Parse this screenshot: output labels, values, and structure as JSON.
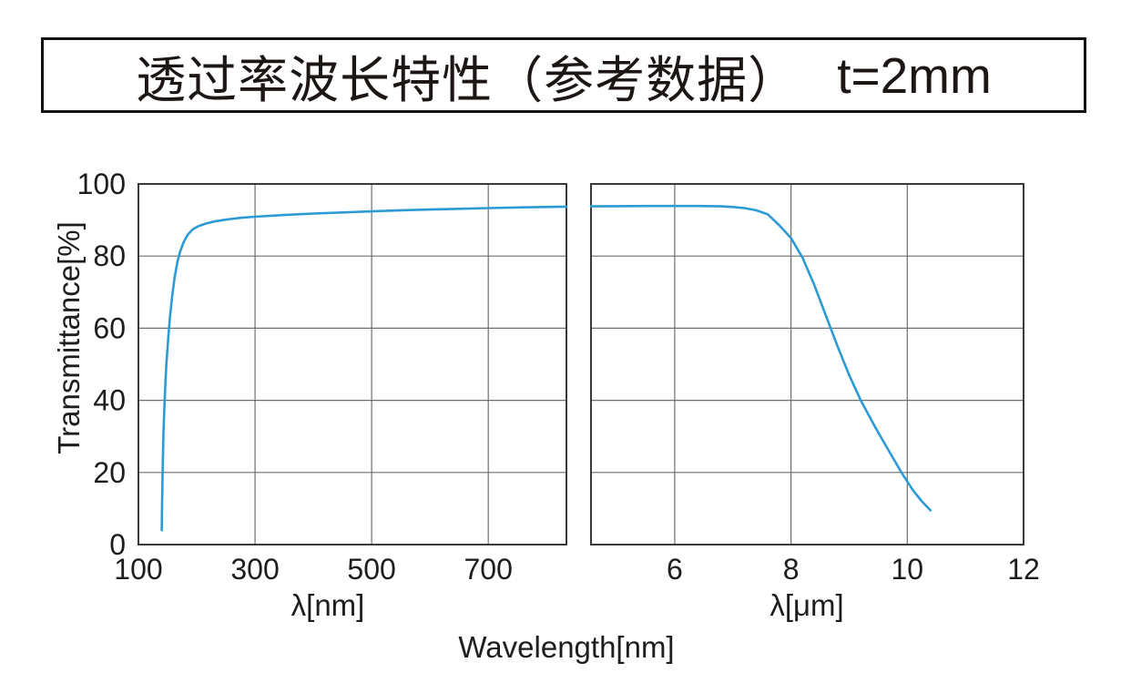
{
  "header": {
    "title": "透过率波长特性（参考数据）",
    "thickness_label": "t=2mm"
  },
  "colors": {
    "curve": "#2C9BD4",
    "axis_border": "#3a3a3a",
    "gridline": "#6e6e6e",
    "tick_text": "#1d1d1d",
    "title_text": "#1c1614",
    "background": "#ffffff"
  },
  "chart_data": {
    "type": "line",
    "title": "透过率波长特性（参考数据） t=2mm",
    "ylabel": "Transmittance[%]",
    "xlabel_bottom": "Wavelength[nm]",
    "ylim": [
      0,
      100
    ],
    "yticks": [
      0,
      20,
      40,
      60,
      80,
      100
    ],
    "grid": true,
    "broken_axis": true,
    "legend": "none",
    "panels": [
      {
        "name": "uv-visible",
        "xlabel": "λ[nm]",
        "unit": "nm",
        "xlim": [
          100,
          834
        ],
        "xticks": [
          100,
          300,
          500,
          700
        ],
        "series": [
          {
            "name": "transmittance",
            "points": [
              [
                140,
                4
              ],
              [
                140.5,
                10
              ],
              [
                141,
                16
              ],
              [
                142,
                24
              ],
              [
                143,
                31
              ],
              [
                144.5,
                38
              ],
              [
                146,
                44
              ],
              [
                148,
                50
              ],
              [
                151,
                57
              ],
              [
                154,
                63
              ],
              [
                158,
                69
              ],
              [
                162,
                74
              ],
              [
                167,
                78.5
              ],
              [
                172,
                81.5
              ],
              [
                178,
                84
              ],
              [
                185,
                86
              ],
              [
                193,
                87.4
              ],
              [
                203,
                88.3
              ],
              [
                215,
                89
              ],
              [
                230,
                89.6
              ],
              [
                250,
                90.1
              ],
              [
                275,
                90.6
              ],
              [
                300,
                90.9
              ],
              [
                350,
                91.4
              ],
              [
                400,
                91.8
              ],
              [
                450,
                92.1
              ],
              [
                500,
                92.4
              ],
              [
                550,
                92.7
              ],
              [
                600,
                92.9
              ],
              [
                650,
                93.1
              ],
              [
                700,
                93.3
              ],
              [
                760,
                93.5
              ],
              [
                834,
                93.7
              ]
            ]
          }
        ]
      },
      {
        "name": "infrared",
        "xlabel": "λ[μm]",
        "unit": "μm",
        "xlim": [
          4.56,
          12
        ],
        "xticks": [
          6,
          8,
          10,
          12
        ],
        "series": [
          {
            "name": "transmittance",
            "points": [
              [
                4.56,
                93.8
              ],
              [
                5,
                93.85
              ],
              [
                5.5,
                93.9
              ],
              [
                6,
                93.9
              ],
              [
                6.4,
                93.9
              ],
              [
                6.8,
                93.8
              ],
              [
                7,
                93.6
              ],
              [
                7.2,
                93.3
              ],
              [
                7.4,
                92.7
              ],
              [
                7.6,
                91.6
              ],
              [
                7.8,
                88.5
              ],
              [
                8,
                85
              ],
              [
                8.2,
                79.5
              ],
              [
                8.4,
                72
              ],
              [
                8.6,
                63.5
              ],
              [
                8.8,
                55
              ],
              [
                9,
                47
              ],
              [
                9.2,
                40
              ],
              [
                9.45,
                32.5
              ],
              [
                9.7,
                25.5
              ],
              [
                9.9,
                20
              ],
              [
                10.1,
                15
              ],
              [
                10.25,
                12
              ],
              [
                10.4,
                9.5
              ]
            ]
          }
        ]
      }
    ]
  }
}
